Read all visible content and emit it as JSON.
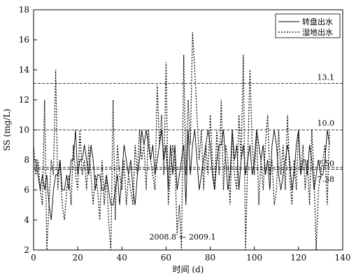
{
  "chart_data": {
    "type": "line",
    "xlabel": "时间  (d)",
    "ylabel": "SS  (mg/L)",
    "xlim": [
      0,
      140
    ],
    "ylim": [
      2,
      18
    ],
    "x_ticks": [
      0,
      20,
      40,
      60,
      80,
      100,
      120,
      140
    ],
    "y_ticks": [
      2,
      4,
      6,
      8,
      10,
      12,
      14,
      16,
      18
    ],
    "grid": false,
    "legend_position": "top-right",
    "series": [
      {
        "name": "转盘出水",
        "style": "solid",
        "x": [
          0,
          1,
          2,
          3,
          4,
          5,
          6,
          7,
          8,
          9,
          10,
          11,
          12,
          13,
          14,
          15,
          16,
          17,
          18,
          19,
          20,
          21,
          22,
          23,
          24,
          25,
          26,
          27,
          28,
          29,
          30,
          31,
          32,
          33,
          34,
          35,
          36,
          37,
          38,
          39,
          40,
          41,
          42,
          43,
          44,
          45,
          46,
          47,
          48,
          49,
          50,
          51,
          52,
          53,
          54,
          55,
          56,
          57,
          58,
          59,
          60,
          61,
          62,
          63,
          64,
          65,
          66,
          67,
          68,
          69,
          70,
          71,
          72,
          73,
          74,
          75,
          76,
          77,
          78,
          79,
          80,
          81,
          82,
          83,
          84,
          85,
          86,
          87,
          88,
          89,
          90,
          91,
          92,
          93,
          94,
          95,
          96,
          97,
          98,
          99,
          100,
          101,
          102,
          103,
          104,
          105,
          106,
          107,
          108,
          109,
          110,
          111,
          112,
          113,
          114,
          115,
          116,
          117,
          118,
          119,
          120,
          121,
          122,
          123,
          124,
          125,
          126,
          127,
          128,
          129,
          130,
          131,
          132,
          133,
          134
        ],
        "y": [
          8,
          8,
          7,
          6,
          7,
          6,
          7,
          5,
          4,
          6,
          7,
          7,
          8,
          6,
          6,
          7,
          6,
          8,
          8,
          10,
          7,
          8,
          8,
          9,
          8,
          7,
          9,
          8,
          6,
          7,
          7,
          6,
          6,
          7,
          6,
          5,
          5,
          6,
          7,
          5,
          7,
          9,
          8,
          7,
          8,
          6,
          5,
          7,
          8,
          10,
          9,
          10,
          9,
          8,
          9,
          7,
          8,
          9,
          10,
          8,
          9,
          6,
          9,
          7,
          9,
          6,
          7,
          8,
          9,
          5,
          10,
          7,
          9,
          10,
          8,
          6,
          7,
          8,
          9,
          10,
          9,
          7,
          6,
          8,
          9,
          9,
          10,
          8,
          6,
          7,
          10,
          8,
          9,
          6,
          8,
          9,
          7,
          8,
          9,
          7,
          8,
          10,
          9,
          8,
          9,
          7,
          8,
          6,
          9,
          10,
          9,
          7,
          6,
          7,
          8,
          9,
          8,
          6,
          7,
          9,
          10,
          7,
          8,
          8,
          7,
          9,
          8,
          6,
          7,
          8,
          7,
          7,
          8,
          10,
          9
        ]
      },
      {
        "name": "湿地出水",
        "style": "dotted",
        "x": [
          0,
          1,
          2,
          3,
          4,
          5,
          6,
          7,
          8,
          9,
          10,
          11,
          12,
          13,
          14,
          15,
          16,
          17,
          18,
          19,
          20,
          21,
          22,
          23,
          24,
          25,
          26,
          27,
          28,
          29,
          30,
          31,
          32,
          33,
          34,
          35,
          36,
          37,
          38,
          39,
          40,
          41,
          42,
          43,
          44,
          45,
          46,
          47,
          48,
          49,
          50,
          51,
          52,
          53,
          54,
          55,
          56,
          57,
          58,
          59,
          60,
          61,
          62,
          63,
          64,
          65,
          66,
          67,
          68,
          69,
          70,
          71,
          72,
          73,
          74,
          75,
          76,
          77,
          78,
          79,
          80,
          81,
          82,
          83,
          84,
          85,
          86,
          87,
          88,
          89,
          90,
          91,
          92,
          93,
          94,
          95,
          96,
          97,
          98,
          99,
          100,
          101,
          102,
          103,
          104,
          105,
          106,
          107,
          108,
          109,
          110,
          111,
          112,
          113,
          114,
          115,
          116,
          117,
          118,
          119,
          120,
          121,
          122,
          123,
          124,
          125,
          126,
          127,
          128,
          129,
          130,
          131,
          132,
          133,
          134
        ],
        "y": [
          9,
          7,
          8,
          6,
          5,
          12,
          2,
          5,
          8,
          7,
          14,
          6,
          8,
          5,
          4,
          6,
          7,
          5,
          9,
          7,
          6,
          10,
          7,
          8,
          6,
          9,
          7,
          5,
          7,
          6,
          4,
          8,
          5,
          7,
          4,
          2,
          12,
          4,
          9,
          7,
          6,
          8,
          5,
          7,
          6,
          5,
          9,
          7,
          10,
          8,
          9,
          6,
          10,
          8,
          7,
          6,
          13,
          9,
          11,
          7,
          14.5,
          5,
          7,
          9,
          8,
          3,
          5,
          2,
          15,
          7,
          12,
          9,
          16.5,
          14,
          11,
          8,
          10,
          6,
          9,
          7,
          11,
          8,
          6,
          10,
          7,
          12,
          6,
          9,
          8,
          5,
          10,
          7,
          6,
          11,
          8,
          15,
          2,
          8,
          14,
          9,
          7,
          10,
          5,
          8,
          6,
          9,
          11,
          7,
          8,
          5,
          6,
          10,
          7,
          9,
          6,
          11,
          7,
          5,
          8,
          6,
          10,
          7,
          9,
          6,
          8,
          5,
          10,
          7,
          2,
          6,
          7,
          8,
          9,
          5,
          10
        ]
      }
    ],
    "reference_lines": [
      {
        "y": 13.1,
        "label": "13.1"
      },
      {
        "y": 10.0,
        "label": "10.0"
      },
      {
        "y": 7.5,
        "label": "7.50"
      },
      {
        "y": 7.38,
        "label": "7.38"
      }
    ],
    "annotation": {
      "text": "2008.8 — 2009.1",
      "x": 65,
      "y": 2.8
    }
  }
}
